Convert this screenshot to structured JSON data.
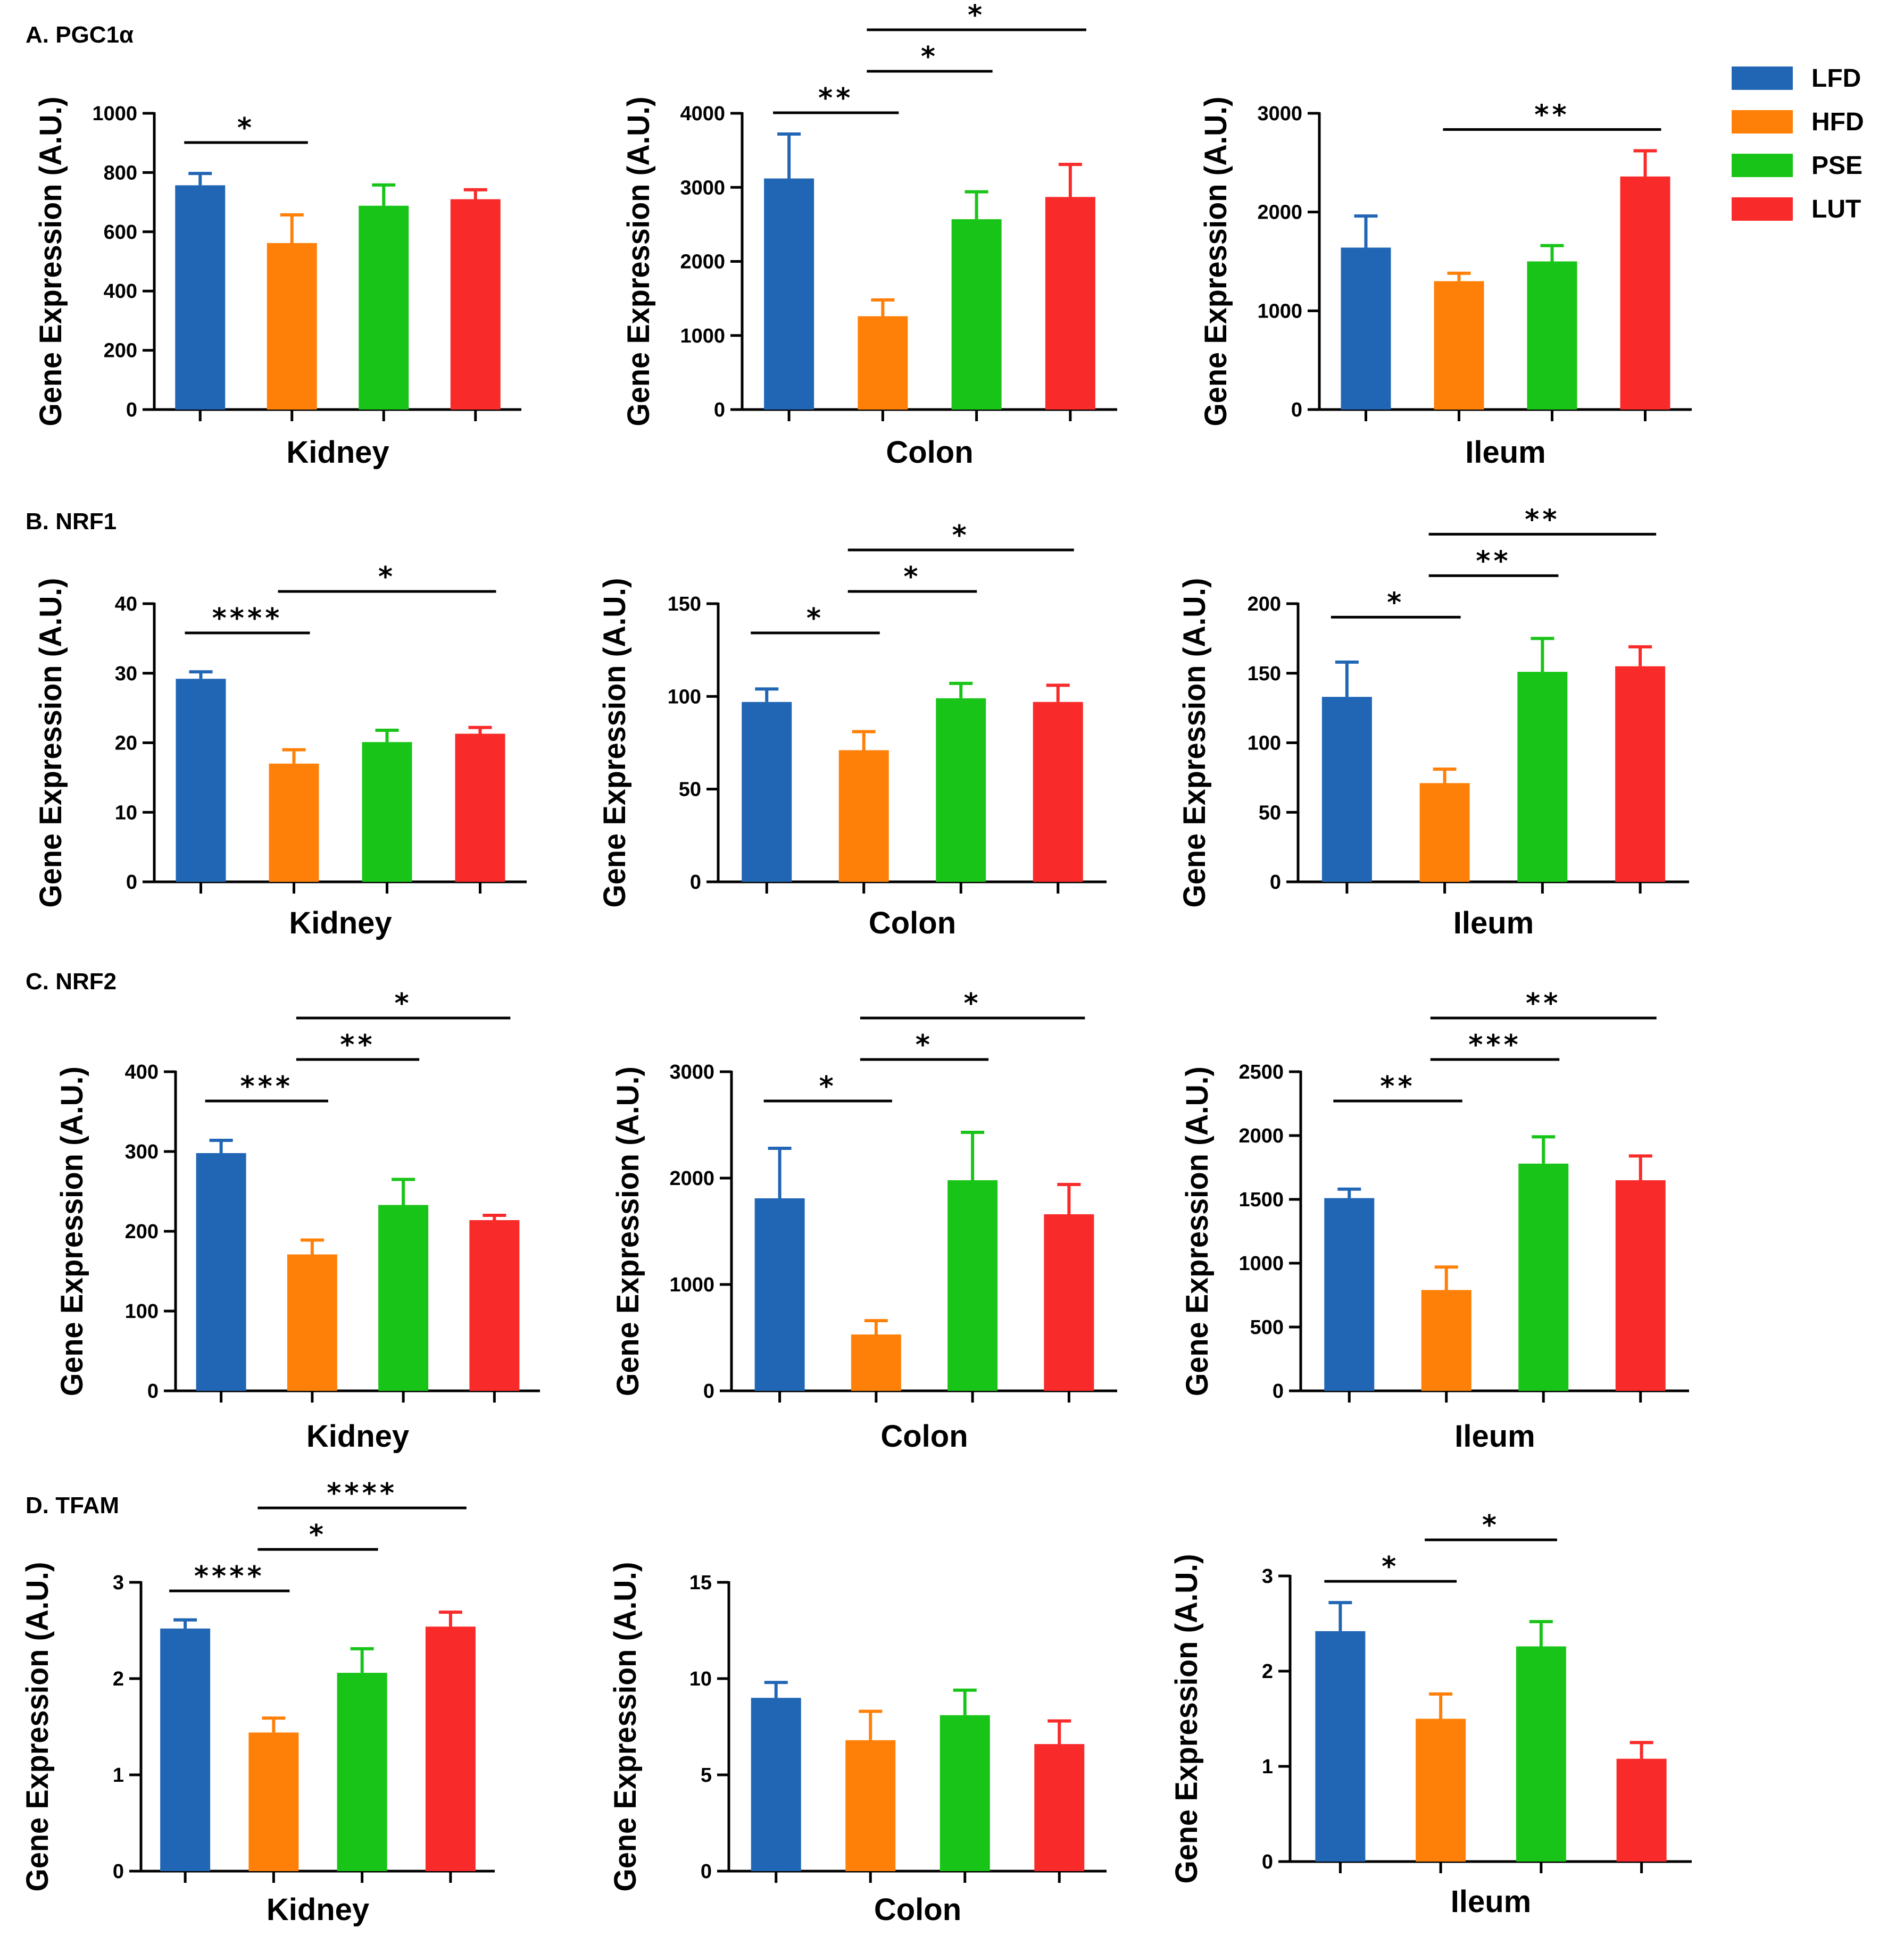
{
  "legend": [
    {
      "name": "LFD",
      "color": "#2166b5"
    },
    {
      "name": "HFD",
      "color": "#ff8008"
    },
    {
      "name": "PSE",
      "color": "#19c418"
    },
    {
      "name": "LUT",
      "color": "#f92a2a"
    }
  ],
  "sections": [
    {
      "label": "A. PGC1α"
    },
    {
      "label": "B. NRF1"
    },
    {
      "label": "C. NRF2"
    },
    {
      "label": "D. TFAM"
    }
  ],
  "chart_data": [
    {
      "type": "bar",
      "section": "A. PGC1α",
      "xlabel": "Kidney",
      "ylabel": "Gene Expression (A.U.)",
      "ylim": [
        0,
        1000
      ],
      "yticks": [
        0,
        200,
        400,
        600,
        800,
        1000
      ],
      "categories": [
        "LFD",
        "HFD",
        "PSE",
        "LUT"
      ],
      "values": [
        757,
        562,
        688,
        710
      ],
      "errors": [
        40,
        95,
        70,
        32
      ],
      "significance": [
        {
          "from": 0,
          "to": 1,
          "label": "*"
        }
      ]
    },
    {
      "type": "bar",
      "section": "A. PGC1α",
      "xlabel": "Colon",
      "ylabel": "Gene Expression (A.U.)",
      "ylim": [
        0,
        4000
      ],
      "yticks": [
        0,
        1000,
        2000,
        3000,
        4000
      ],
      "categories": [
        "LFD",
        "HFD",
        "PSE",
        "LUT"
      ],
      "values": [
        3120,
        1260,
        2570,
        2870
      ],
      "errors": [
        600,
        220,
        370,
        440
      ],
      "significance": [
        {
          "from": 0,
          "to": 1,
          "label": "**"
        },
        {
          "from": 1,
          "to": 2,
          "label": "*"
        },
        {
          "from": 1,
          "to": 3,
          "label": "*"
        }
      ]
    },
    {
      "type": "bar",
      "section": "A. PGC1α",
      "xlabel": "Ileum",
      "ylabel": "Gene Expression (A.U.)",
      "ylim": [
        0,
        3000
      ],
      "yticks": [
        0,
        1000,
        2000,
        3000
      ],
      "categories": [
        "LFD",
        "HFD",
        "PSE",
        "LUT"
      ],
      "values": [
        1640,
        1300,
        1500,
        2360
      ],
      "errors": [
        320,
        80,
        160,
        260
      ],
      "significance": [
        {
          "from": 1,
          "to": 3,
          "label": "**"
        }
      ]
    },
    {
      "type": "bar",
      "section": "B. NRF1",
      "xlabel": "Kidney",
      "ylabel": "Gene Expression (A.U.)",
      "ylim": [
        0,
        40
      ],
      "yticks": [
        0,
        10,
        20,
        30,
        40
      ],
      "categories": [
        "LFD",
        "HFD",
        "PSE",
        "LUT"
      ],
      "values": [
        29.2,
        17,
        20.1,
        21.3
      ],
      "errors": [
        1,
        2,
        1.7,
        0.9
      ],
      "significance": [
        {
          "from": 0,
          "to": 1,
          "label": "****"
        },
        {
          "from": 1,
          "to": 3,
          "label": "*"
        }
      ]
    },
    {
      "type": "bar",
      "section": "B. NRF1",
      "xlabel": "Colon",
      "ylabel": "Gene Expression (A.U.)",
      "ylim": [
        0,
        150
      ],
      "yticks": [
        0,
        50,
        100,
        150
      ],
      "categories": [
        "LFD",
        "HFD",
        "PSE",
        "LUT"
      ],
      "values": [
        97,
        71,
        99,
        97
      ],
      "errors": [
        7,
        10,
        8,
        9
      ],
      "significance": [
        {
          "from": 0,
          "to": 1,
          "label": "*"
        },
        {
          "from": 1,
          "to": 2,
          "label": "*"
        },
        {
          "from": 1,
          "to": 3,
          "label": "*"
        }
      ]
    },
    {
      "type": "bar",
      "section": "B. NRF1",
      "xlabel": "Ileum",
      "ylabel": "Gene Expression (A.U.)",
      "ylim": [
        0,
        200
      ],
      "yticks": [
        0,
        50,
        100,
        150,
        200
      ],
      "categories": [
        "LFD",
        "HFD",
        "PSE",
        "LUT"
      ],
      "values": [
        133,
        71,
        151,
        155
      ],
      "errors": [
        25,
        10,
        24,
        14
      ],
      "significance": [
        {
          "from": 0,
          "to": 1,
          "label": "*"
        },
        {
          "from": 1,
          "to": 2,
          "label": "**"
        },
        {
          "from": 1,
          "to": 3,
          "label": "**"
        }
      ]
    },
    {
      "type": "bar",
      "section": "C. NRF2",
      "xlabel": "Kidney",
      "ylabel": "Gene Expression (A.U.)",
      "ylim": [
        0,
        400
      ],
      "yticks": [
        0,
        100,
        200,
        300,
        400
      ],
      "categories": [
        "LFD",
        "HFD",
        "PSE",
        "LUT"
      ],
      "values": [
        298,
        171,
        233,
        214
      ],
      "errors": [
        16,
        18,
        32,
        6
      ],
      "significance": [
        {
          "from": 0,
          "to": 1,
          "label": "***"
        },
        {
          "from": 1,
          "to": 2,
          "label": "**"
        },
        {
          "from": 1,
          "to": 3,
          "label": "*"
        }
      ]
    },
    {
      "type": "bar",
      "section": "C. NRF2",
      "xlabel": "Colon",
      "ylabel": "Gene Expression (A.U.)",
      "ylim": [
        0,
        3000
      ],
      "yticks": [
        0,
        1000,
        2000,
        3000
      ],
      "categories": [
        "LFD",
        "HFD",
        "PSE",
        "LUT"
      ],
      "values": [
        1810,
        530,
        1980,
        1660
      ],
      "errors": [
        470,
        130,
        450,
        280
      ],
      "significance": [
        {
          "from": 0,
          "to": 1,
          "label": "*"
        },
        {
          "from": 1,
          "to": 2,
          "label": "*"
        },
        {
          "from": 1,
          "to": 3,
          "label": "*"
        }
      ]
    },
    {
      "type": "bar",
      "section": "C. NRF2",
      "xlabel": "Ileum",
      "ylabel": "Gene Expression (A.U.)",
      "ylim": [
        0,
        2500
      ],
      "yticks": [
        0,
        500,
        1000,
        1500,
        2000,
        2500
      ],
      "categories": [
        "LFD",
        "HFD",
        "PSE",
        "LUT"
      ],
      "values": [
        1510,
        790,
        1780,
        1650
      ],
      "errors": [
        70,
        180,
        210,
        190
      ],
      "significance": [
        {
          "from": 0,
          "to": 1,
          "label": "**"
        },
        {
          "from": 1,
          "to": 2,
          "label": "***"
        },
        {
          "from": 1,
          "to": 3,
          "label": "**"
        }
      ]
    },
    {
      "type": "bar",
      "section": "D. TFAM",
      "xlabel": "Kidney",
      "ylabel": "Gene Expression (A.U.)",
      "ylim": [
        0,
        3
      ],
      "yticks": [
        0,
        1,
        2,
        3
      ],
      "categories": [
        "LFD",
        "HFD",
        "PSE",
        "LUT"
      ],
      "values": [
        2.52,
        1.44,
        2.06,
        2.54
      ],
      "errors": [
        0.09,
        0.15,
        0.25,
        0.15
      ],
      "significance": [
        {
          "from": 0,
          "to": 1,
          "label": "****"
        },
        {
          "from": 1,
          "to": 2,
          "label": "*"
        },
        {
          "from": 1,
          "to": 3,
          "label": "****"
        }
      ]
    },
    {
      "type": "bar",
      "section": "D. TFAM",
      "xlabel": "Colon",
      "ylabel": "Gene Expression (A.U.)",
      "ylim": [
        0,
        15
      ],
      "yticks": [
        0,
        5,
        10,
        15
      ],
      "categories": [
        "LFD",
        "HFD",
        "PSE",
        "LUT"
      ],
      "values": [
        9,
        6.8,
        8.1,
        6.6
      ],
      "errors": [
        0.8,
        1.5,
        1.3,
        1.2
      ],
      "significance": []
    },
    {
      "type": "bar",
      "section": "D. TFAM",
      "xlabel": "Ileum",
      "ylabel": "Gene Expression (A.U.)",
      "ylim": [
        0,
        3
      ],
      "yticks": [
        0,
        1,
        2,
        3
      ],
      "categories": [
        "LFD",
        "HFD",
        "PSE",
        "LUT"
      ],
      "values": [
        2.42,
        1.5,
        2.26,
        1.08
      ],
      "errors": [
        0.3,
        0.26,
        0.26,
        0.17
      ],
      "significance": [
        {
          "from": 0,
          "to": 1,
          "label": "*"
        },
        {
          "from": 1,
          "to": 2,
          "label": "*"
        }
      ]
    }
  ]
}
